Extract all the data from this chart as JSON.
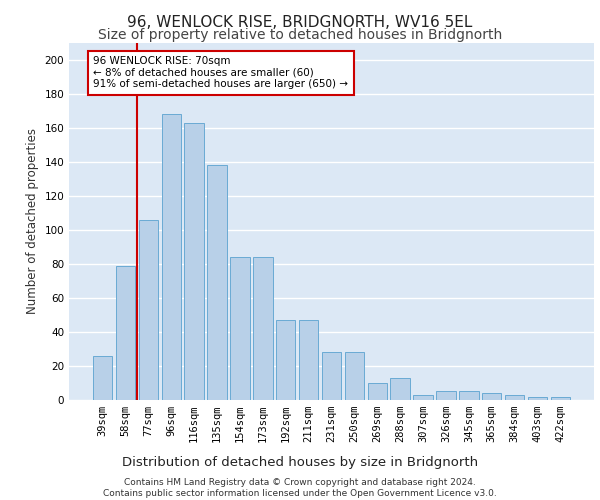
{
  "title": "96, WENLOCK RISE, BRIDGNORTH, WV16 5EL",
  "subtitle": "Size of property relative to detached houses in Bridgnorth",
  "xlabel": "Distribution of detached houses by size in Bridgnorth",
  "ylabel": "Number of detached properties",
  "categories": [
    "39sqm",
    "58sqm",
    "77sqm",
    "96sqm",
    "116sqm",
    "135sqm",
    "154sqm",
    "173sqm",
    "192sqm",
    "211sqm",
    "231sqm",
    "250sqm",
    "269sqm",
    "288sqm",
    "307sqm",
    "326sqm",
    "345sqm",
    "365sqm",
    "384sqm",
    "403sqm",
    "422sqm"
  ],
  "values": [
    26,
    79,
    106,
    168,
    163,
    138,
    84,
    84,
    47,
    47,
    28,
    28,
    10,
    13,
    3,
    5,
    5,
    4,
    3,
    2,
    2
  ],
  "bar_color": "#b8d0e8",
  "bar_edge_color": "#6aaad4",
  "vline_position": 1.5,
  "vline_color": "#cc0000",
  "annotation_text": "96 WENLOCK RISE: 70sqm\n← 8% of detached houses are smaller (60)\n91% of semi-detached houses are larger (650) →",
  "annotation_box_color": "#ffffff",
  "annotation_box_edge": "#cc0000",
  "ylim": [
    0,
    210
  ],
  "yticks": [
    0,
    20,
    40,
    60,
    80,
    100,
    120,
    140,
    160,
    180,
    200
  ],
  "background_color": "#dce8f5",
  "grid_color": "#ffffff",
  "footer": "Contains HM Land Registry data © Crown copyright and database right 2024.\nContains public sector information licensed under the Open Government Licence v3.0.",
  "title_fontsize": 11,
  "subtitle_fontsize": 10,
  "xlabel_fontsize": 9.5,
  "ylabel_fontsize": 8.5,
  "tick_fontsize": 7.5,
  "annotation_fontsize": 7.5,
  "footer_fontsize": 6.5
}
